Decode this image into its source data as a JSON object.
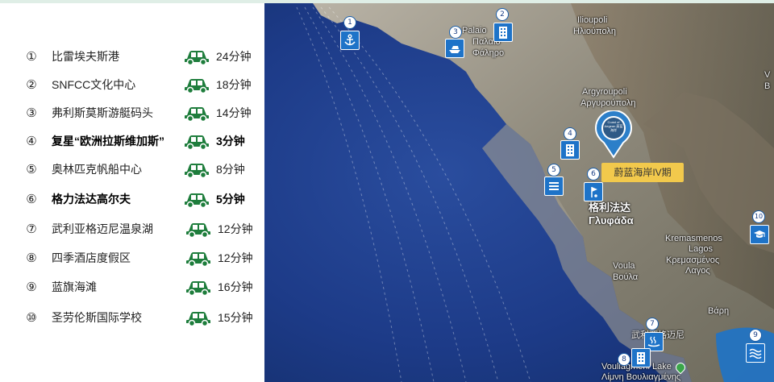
{
  "list": [
    {
      "num": "①",
      "name": "比雷埃夫斯港",
      "time": "24分钟",
      "bold": false
    },
    {
      "num": "②",
      "name": "SNFCC文化中心",
      "time": "18分钟",
      "bold": false
    },
    {
      "num": "③",
      "name": "弗利斯莫斯游艇码头",
      "time": "14分钟",
      "bold": false
    },
    {
      "num": "④",
      "name": "复星“欧洲拉斯维加斯”",
      "time": "3分钟",
      "bold": true
    },
    {
      "num": "⑤",
      "name": "奥林匹克帆船中心",
      "time": "8分钟",
      "bold": false
    },
    {
      "num": "⑥",
      "name": "格力法达高尔夫",
      "time": "5分钟",
      "bold": true
    },
    {
      "num": "⑦",
      "name": "武利亚格迈尼温泉湖",
      "time": "12分钟",
      "bold": false
    },
    {
      "num": "⑧",
      "name": "四季酒店度假区",
      "time": "12分钟",
      "bold": false
    },
    {
      "num": "⑨",
      "name": "蓝旗海滩",
      "time": "16分钟",
      "bold": false
    },
    {
      "num": "⑩",
      "name": "圣劳伦斯国际学校",
      "time": "15分钟",
      "bold": false
    }
  ],
  "map": {
    "places": {
      "palaio1": "Palaio",
      "palaio2": "Παλαιό",
      "palaio3": "Φάληρο",
      "ilioupoli1": "Ilioupoli",
      "ilioupoli2": "Ηλιούπολη",
      "argyroupoli1": "Argyroupoli",
      "argyroupoli2": "Αργυρούπολη",
      "glyfada1": "格利法达",
      "glyfada2": "Γλυφάδα",
      "voula1": "Voula",
      "voula2": "Βούλα",
      "kremasmenos1": "Kremasmenos",
      "kremasmenos2": "Lagos",
      "kremasmenos3": "Κρεμασμένος",
      "kremasmenos4": "Λαγος",
      "vari": "Βάρη",
      "lake_cn": "武利亚格迈尼",
      "lake_en": "Vouliagmeni Lake",
      "lake_gr": "Λίμνη Βουλιαγμένης",
      "edge_v": "V",
      "edge_v2": "Β"
    },
    "markers": [
      "1",
      "2",
      "3",
      "4",
      "5",
      "6",
      "7",
      "8",
      "9",
      "10"
    ],
    "project_label": "蔚蓝海岸IV期",
    "pin_text": "Coast of Aegean 蔚蓝海岸"
  },
  "colors": {
    "car_green": "#1e7d3c",
    "sea_deep": "#1b3a86",
    "marker_blue": "#1e73c8",
    "label_yellow": "#f2c94c"
  },
  "icons": [
    "car-icon",
    "anchor-icon",
    "building-icon",
    "yacht-icon",
    "sailboat-icon",
    "golf-icon",
    "spa-icon",
    "wave-icon",
    "graduation-cap-icon",
    "map-pin-icon"
  ]
}
